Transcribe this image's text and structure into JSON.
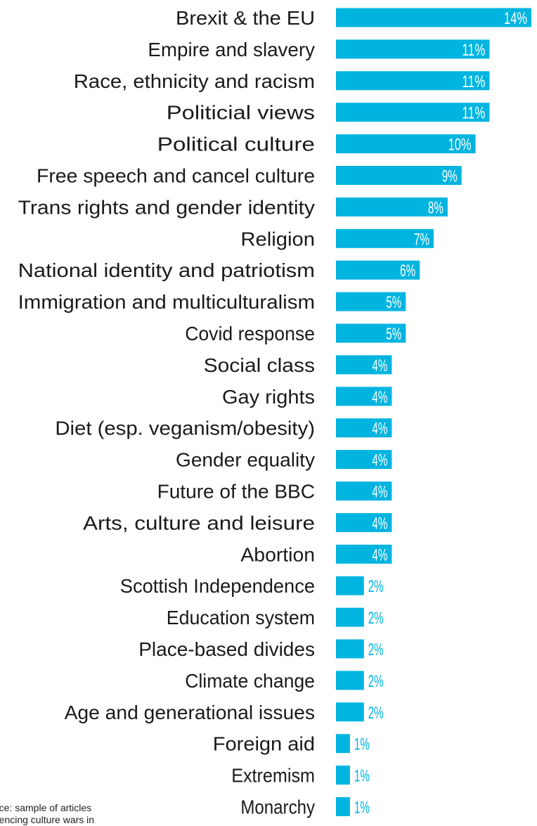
{
  "chart_data": {
    "type": "bar",
    "orientation": "horizontal",
    "categories": [
      "Brexit & the EU",
      "Empire and slavery",
      "Race, ethnicity and racism",
      "Politicial views",
      "Political culture",
      "Free speech and cancel culture",
      "Trans rights and gender identity",
      "Religion",
      "National identity and patriotism",
      "Immigration and multiculturalism",
      "Covid response",
      "Social class",
      "Gay rights",
      "Diet (esp. veganism/obesity)",
      "Gender equality",
      "Future of the BBC",
      "Arts, culture and leisure",
      "Abortion",
      "Scottish Independence",
      "Education system",
      "Place-based divides",
      "Climate change",
      "Age and generational issues",
      "Foreign aid",
      "Extremism",
      "Monarchy"
    ],
    "values": [
      14,
      11,
      11,
      11,
      10,
      9,
      8,
      7,
      6,
      5,
      5,
      4,
      4,
      4,
      4,
      4,
      4,
      4,
      2,
      2,
      2,
      2,
      2,
      1,
      1,
      1
    ],
    "labels": [
      "14%",
      "11%",
      "11%",
      "11%",
      "10%",
      "9%",
      "8%",
      "7%",
      "6%",
      "5%",
      "5%",
      "4%",
      "4%",
      "4%",
      "4%",
      "4%",
      "4%",
      "4%",
      "2%",
      "2%",
      "2%",
      "2%",
      "2%",
      "1%",
      "1%",
      "1%"
    ],
    "unit": "%",
    "xlim": [
      0,
      14
    ],
    "title": "",
    "xlabel": "",
    "ylabel": "",
    "grid": false,
    "legend": "none",
    "colors": {
      "bar": "#00b4e0",
      "label_inside": "#ffffff",
      "label_outside": "#00b4e0",
      "category_text": "#1a1a1a"
    }
  },
  "source_note": {
    "line1": "rce: sample of articles",
    "line2": "rencing culture wars in"
  }
}
